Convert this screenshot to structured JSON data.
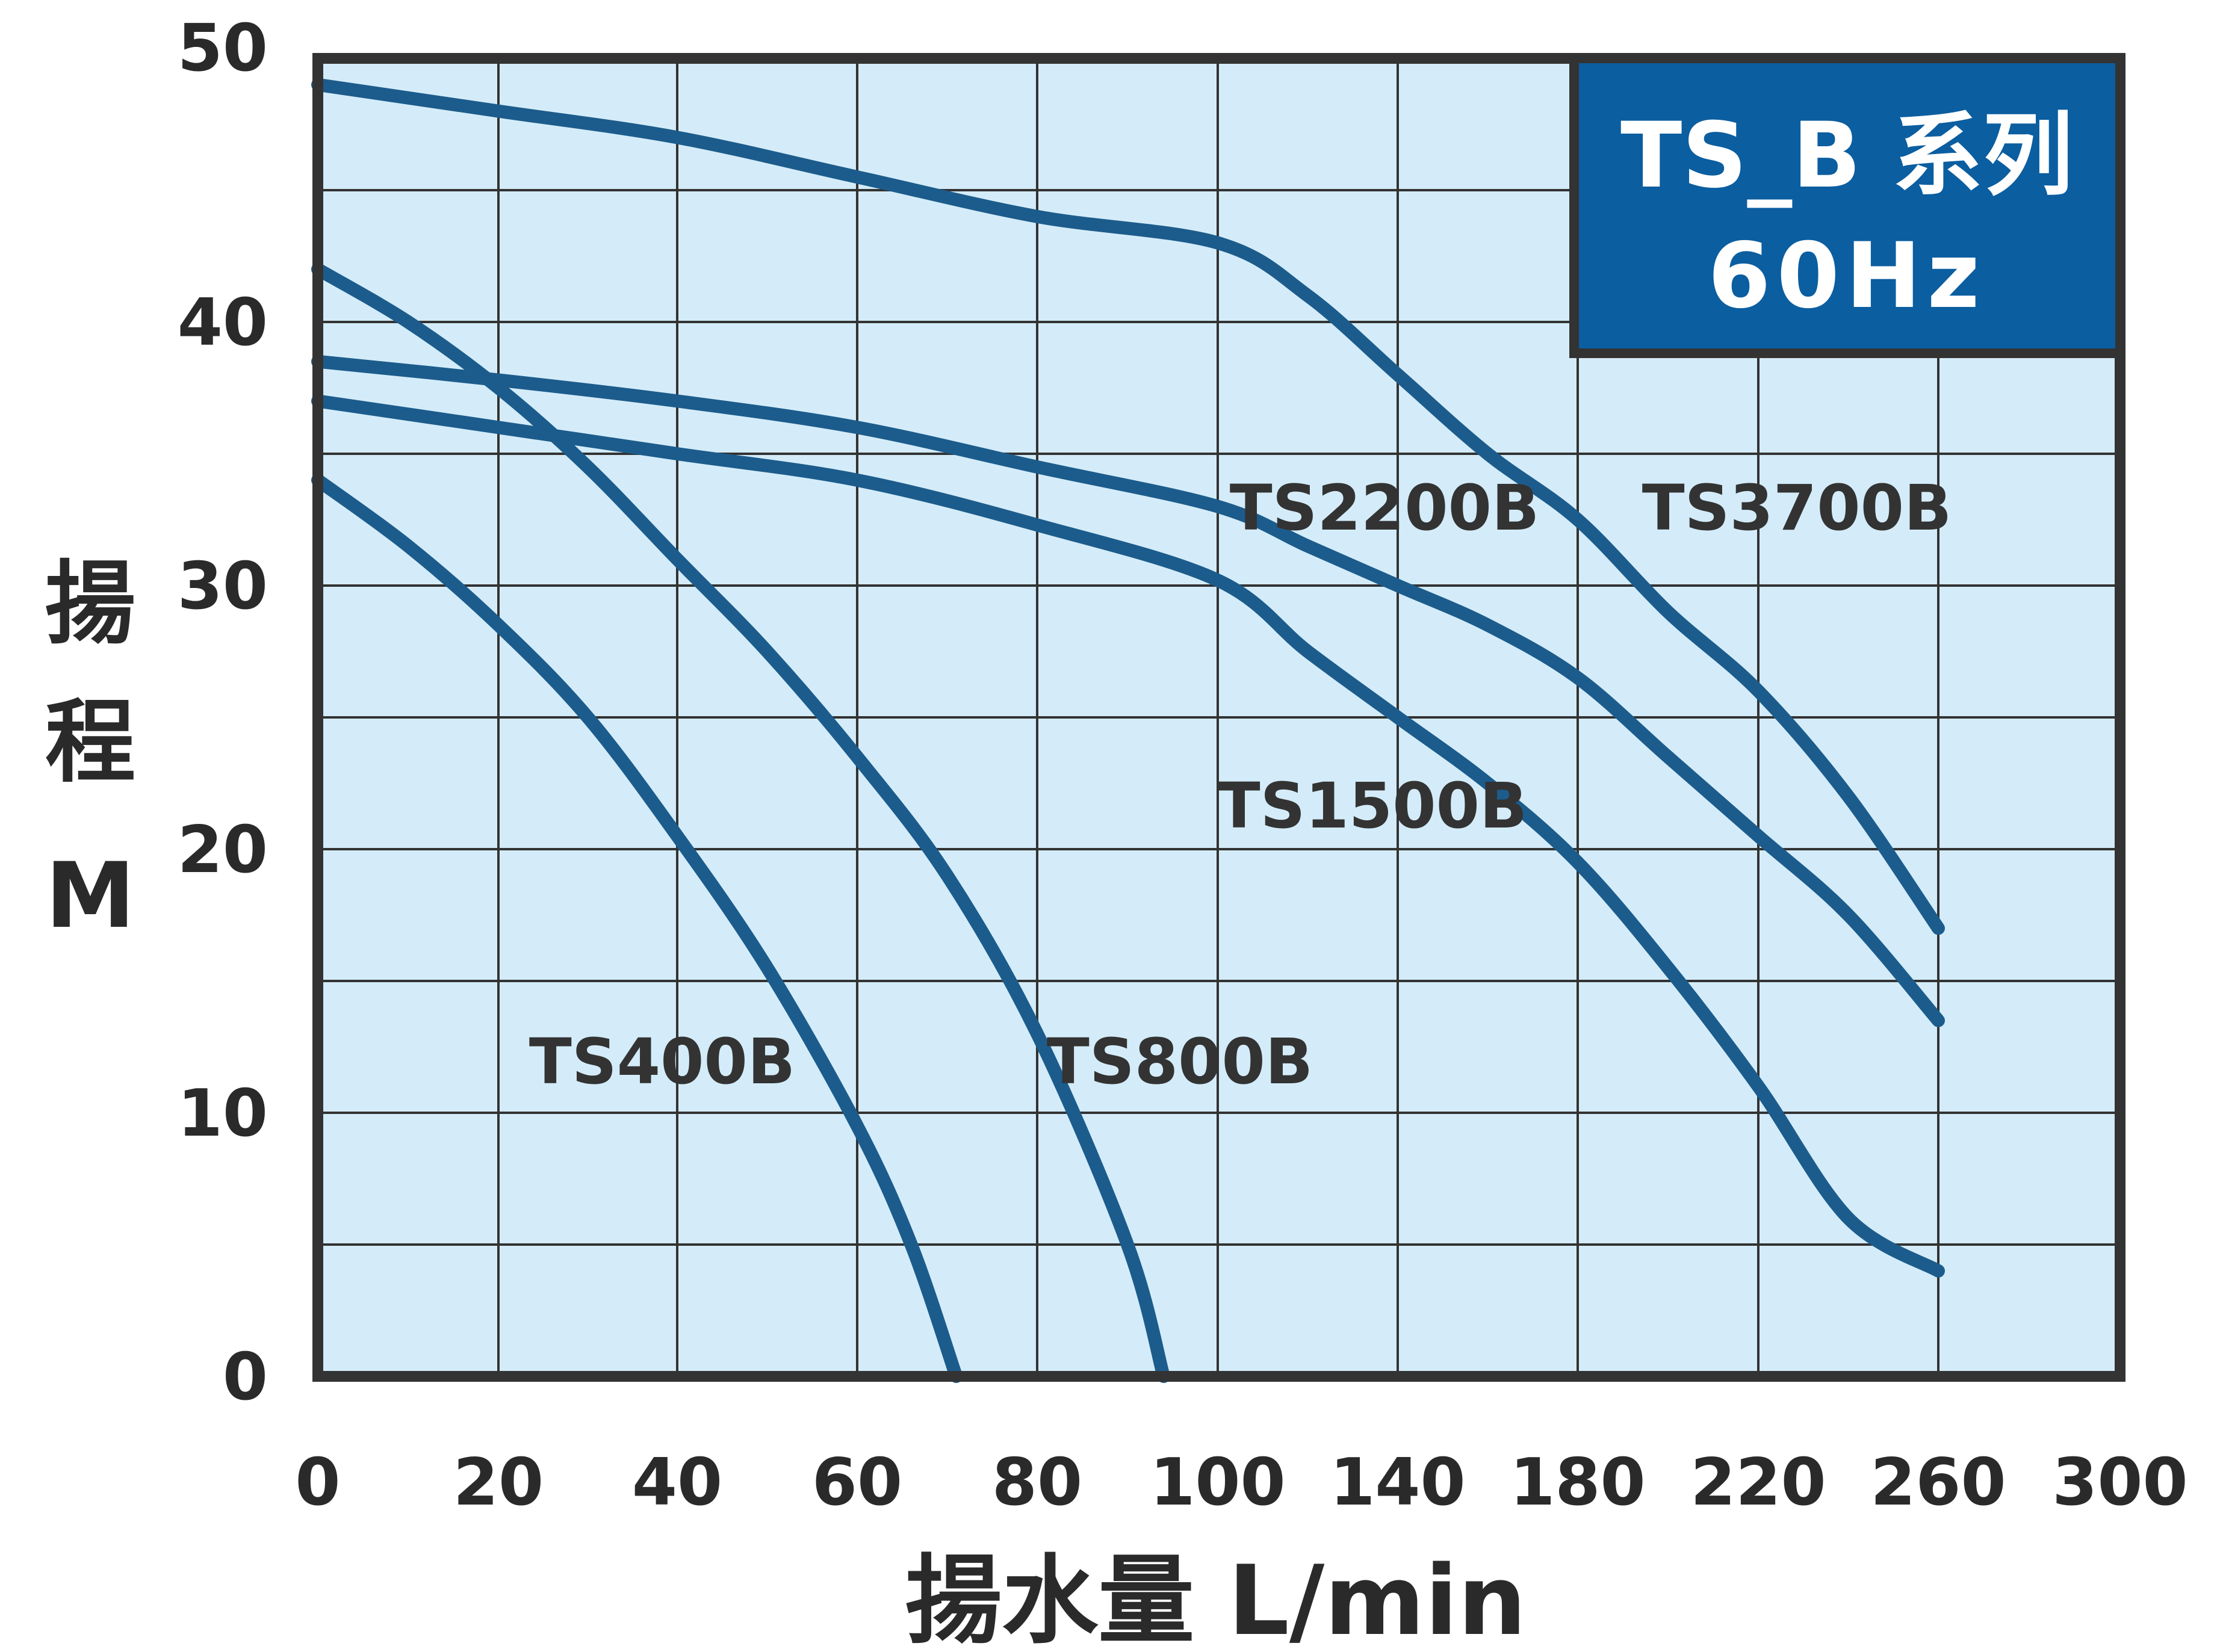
{
  "chart_data": {
    "type": "line",
    "title_line1": "TS_B 系列",
    "title_line2": "60Hz",
    "xlabel": "揚水量 L/min",
    "ylabel_chars": [
      "揚",
      "程"
    ],
    "ylabel_unit": "M",
    "x_ticks": [
      "0",
      "20",
      "40",
      "60",
      "80",
      "100",
      "140",
      "180",
      "220",
      "260",
      "300"
    ],
    "x_tick_values": [
      0,
      20,
      40,
      60,
      80,
      100,
      140,
      180,
      220,
      260,
      300
    ],
    "y_ticks": [
      "0",
      "10",
      "20",
      "30",
      "40",
      "50"
    ],
    "y_tick_values": [
      0,
      10,
      20,
      30,
      40,
      50
    ],
    "xlim": [
      0,
      300
    ],
    "ylim": [
      0,
      50
    ],
    "grid": true,
    "colors": {
      "plot_background": "#d4ecf9",
      "curve": "#1c5c8c",
      "grid": "#333333",
      "legend_box": "#0b5ea0",
      "legend_text": "#ffffff"
    },
    "series": [
      {
        "name": "TS400B",
        "points": [
          [
            0,
            34
          ],
          [
            10,
            31.5
          ],
          [
            20,
            28.5
          ],
          [
            30,
            25
          ],
          [
            40,
            20.5
          ],
          [
            50,
            15.5
          ],
          [
            60,
            9.5
          ],
          [
            66,
            5
          ],
          [
            71,
            0
          ]
        ]
      },
      {
        "name": "TS800B",
        "points": [
          [
            0,
            42
          ],
          [
            10,
            40
          ],
          [
            20,
            37.5
          ],
          [
            30,
            34.5
          ],
          [
            40,
            31
          ],
          [
            50,
            27.5
          ],
          [
            60,
            23.5
          ],
          [
            70,
            19
          ],
          [
            80,
            13
          ],
          [
            90,
            5
          ],
          [
            94,
            0
          ]
        ]
      },
      {
        "name": "TS1500B",
        "points": [
          [
            0,
            37
          ],
          [
            20,
            36
          ],
          [
            40,
            35
          ],
          [
            60,
            34
          ],
          [
            80,
            32.3
          ],
          [
            100,
            30.2
          ],
          [
            120,
            27.5
          ],
          [
            140,
            25
          ],
          [
            160,
            22.5
          ],
          [
            180,
            19.5
          ],
          [
            200,
            15.5
          ],
          [
            220,
            11
          ],
          [
            240,
            6
          ],
          [
            260,
            4
          ]
        ]
      },
      {
        "name": "TS2200B",
        "points": [
          [
            0,
            38.5
          ],
          [
            20,
            37.8
          ],
          [
            40,
            37
          ],
          [
            60,
            36
          ],
          [
            80,
            34.5
          ],
          [
            100,
            33
          ],
          [
            120,
            31.5
          ],
          [
            140,
            30
          ],
          [
            160,
            28.5
          ],
          [
            180,
            26.5
          ],
          [
            200,
            23.5
          ],
          [
            220,
            20.5
          ],
          [
            240,
            17.5
          ],
          [
            260,
            13.5
          ]
        ]
      },
      {
        "name": "TS3700B",
        "points": [
          [
            0,
            49
          ],
          [
            20,
            48
          ],
          [
            40,
            47
          ],
          [
            60,
            45.5
          ],
          [
            80,
            44
          ],
          [
            100,
            43
          ],
          [
            120,
            41
          ],
          [
            140,
            38
          ],
          [
            160,
            35
          ],
          [
            180,
            32.5
          ],
          [
            200,
            29
          ],
          [
            220,
            26
          ],
          [
            240,
            22
          ],
          [
            260,
            17
          ]
        ]
      }
    ]
  }
}
